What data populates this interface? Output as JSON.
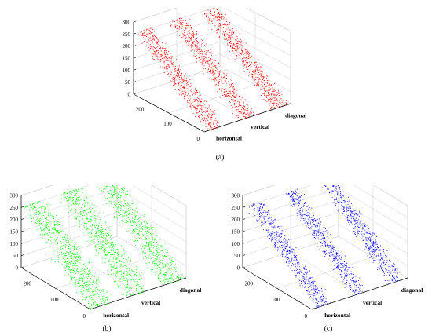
{
  "chart_data": [
    {
      "type": "scatter",
      "panel_label": "(a)",
      "color": "#ff0000",
      "z_ticks": [
        "0",
        "50",
        "100",
        "150",
        "200",
        "250",
        "300"
      ],
      "pixel_axis_ticks": [
        "0",
        "100",
        "200"
      ],
      "directions": [
        "horizontal",
        "vertical",
        "diagonal"
      ],
      "zlim": [
        0,
        300
      ],
      "grid": true
    },
    {
      "type": "scatter",
      "panel_label": "(b)",
      "color": "#00ff00",
      "z_ticks": [
        "0",
        "50",
        "100",
        "150",
        "200",
        "250",
        "300"
      ],
      "pixel_axis_ticks": [
        "0",
        "100",
        "200"
      ],
      "directions": [
        "horizontal",
        "vertical",
        "diagonal"
      ],
      "zlim": [
        0,
        300
      ],
      "grid": true
    },
    {
      "type": "scatter",
      "panel_label": "(c)",
      "color": "#0000ff",
      "z_ticks": [
        "0",
        "50",
        "100",
        "150",
        "200",
        "250",
        "300"
      ],
      "pixel_axis_ticks": [
        "0",
        "100",
        "200"
      ],
      "directions": [
        "horizontal",
        "vertical",
        "diagonal"
      ],
      "zlim": [
        0,
        300
      ],
      "grid": true
    }
  ]
}
